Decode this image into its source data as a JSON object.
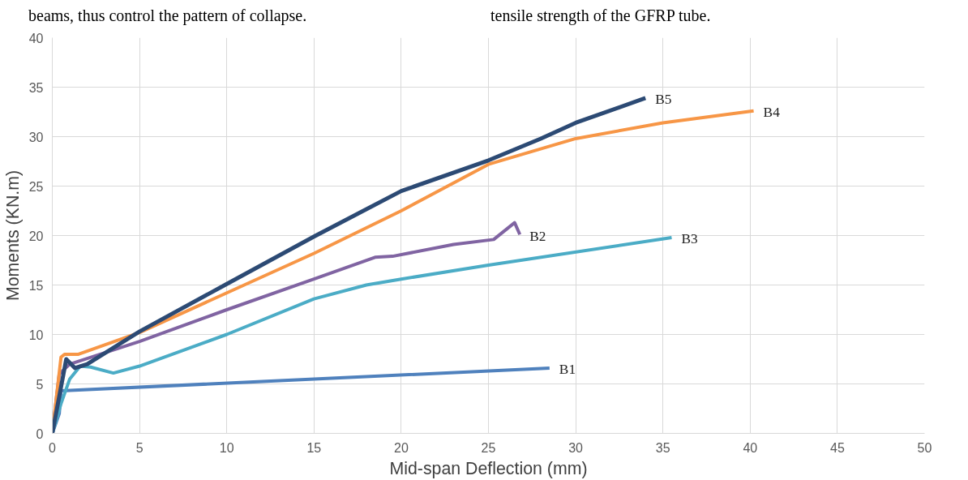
{
  "chart_data": {
    "type": "line",
    "xlabel": "Mid-span Deflection (mm)",
    "ylabel": "Moments (KN.m)",
    "annotations": [
      "beams, thus control the pattern of collapse.",
      "tensile strength of the GFRP tube."
    ],
    "xlim": [
      0,
      50
    ],
    "ylim": [
      0,
      40
    ],
    "xticks": [
      0,
      5,
      10,
      15,
      20,
      25,
      30,
      35,
      40,
      45,
      50
    ],
    "yticks": [
      0,
      5,
      10,
      15,
      20,
      25,
      30,
      35,
      40
    ],
    "grid": true,
    "marker": "none",
    "line_style": "solid",
    "series": [
      {
        "name": "B1",
        "color": "#4f81bd",
        "x": [
          0,
          0.4,
          0.5,
          28.5
        ],
        "values": [
          0,
          2,
          4.3,
          6.6
        ]
      },
      {
        "name": "B2",
        "color": "#8064a2",
        "x": [
          0,
          0.4,
          1,
          5,
          10,
          15,
          18.5,
          19.5,
          23,
          25.3,
          26.5,
          26.8
        ],
        "values": [
          0,
          6,
          7,
          9.3,
          12.5,
          15.6,
          17.8,
          17.9,
          19.1,
          19.6,
          21.3,
          20.1
        ]
      },
      {
        "name": "B3",
        "color": "#4bacc6",
        "x": [
          0,
          0.5,
          1,
          1.6,
          2.2,
          3.5,
          5,
          10,
          15,
          18,
          20,
          25,
          35.5
        ],
        "values": [
          0,
          3,
          5.5,
          6.8,
          6.7,
          6.1,
          6.8,
          10,
          13.6,
          15,
          15.6,
          17,
          19.8
        ]
      },
      {
        "name": "B4",
        "color": "#f79646",
        "x": [
          0,
          0.5,
          0.7,
          1.5,
          5,
          10,
          15,
          20,
          25,
          30,
          35,
          40.2
        ],
        "values": [
          0,
          7.7,
          8,
          8,
          10.2,
          14.2,
          18.2,
          22.5,
          27.2,
          29.8,
          31.4,
          32.6
        ]
      },
      {
        "name": "B5",
        "color": "#2c4a74",
        "x": [
          0,
          0.8,
          1.3,
          2,
          5,
          10,
          15,
          20,
          25,
          28,
          30,
          34
        ],
        "values": [
          0,
          7.5,
          6.6,
          7,
          10.3,
          15.1,
          19.9,
          24.5,
          27.6,
          29.8,
          31.4,
          33.9
        ]
      }
    ]
  }
}
